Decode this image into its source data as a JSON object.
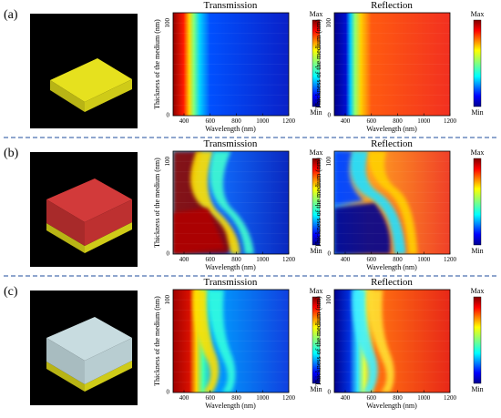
{
  "panels": [
    {
      "label": "(a)",
      "structure": "single-yellow-slab",
      "charts": [
        {
          "title": "Transmission",
          "xlabel": "Wavelength (nm)",
          "ylabel": "Thickness of the medium (nm)",
          "xticks": [
            "400",
            "600",
            "800",
            "1000",
            "1200"
          ],
          "yticks": [
            "0",
            "100"
          ],
          "cbar_max": "Max",
          "cbar_min": "Min"
        },
        {
          "title": "Reflection",
          "xlabel": "Wavelength (nm)",
          "ylabel": "Thickness of the medium (nm)",
          "xticks": [
            "400",
            "600",
            "800",
            "1000",
            "1200"
          ],
          "yticks": [
            "0",
            "100"
          ],
          "cbar_max": "Max",
          "cbar_min": "Min"
        }
      ]
    },
    {
      "label": "(b)",
      "structure": "red-layer-on-yellow-slab",
      "charts": [
        {
          "title": "Transmission",
          "xlabel": "Wavelength (nm)",
          "ylabel": "Thickness of the medium (nm)",
          "xticks": [
            "400",
            "600",
            "800",
            "1000",
            "1200"
          ],
          "yticks": [
            "0",
            "100"
          ],
          "cbar_max": "Max",
          "cbar_min": "Min"
        },
        {
          "title": "Reflection",
          "xlabel": "Wavelength (nm)",
          "ylabel": "Thickness of the medium (nm)",
          "xticks": [
            "400",
            "600",
            "800",
            "1000",
            "1200"
          ],
          "yticks": [
            "0",
            "100"
          ],
          "cbar_max": "Max",
          "cbar_min": "Min"
        }
      ]
    },
    {
      "label": "(c)",
      "structure": "grey-layer-on-yellow-slab",
      "charts": [
        {
          "title": "Transmission",
          "xlabel": "Wavelength (nm)",
          "ylabel": "Thickness of the medium (nm)",
          "xticks": [
            "400",
            "600",
            "800",
            "1000",
            "1200"
          ],
          "yticks": [
            "0",
            "100"
          ],
          "cbar_max": "Max",
          "cbar_min": "Min"
        },
        {
          "title": "Reflection",
          "xlabel": "Wavelength (nm)",
          "ylabel": "Thickness of the medium (nm)",
          "xticks": [
            "400",
            "600",
            "800",
            "1000",
            "1200"
          ],
          "yticks": [
            "0",
            "100"
          ],
          "cbar_max": "Max",
          "cbar_min": "Min"
        }
      ]
    }
  ],
  "colors": {
    "separator": "#1f4e9c",
    "yellow": "#e6e11e",
    "red": "#d23a3a",
    "grey": "#c8dce0",
    "jet_low": "#00008f",
    "jet_high": "#800000"
  }
}
